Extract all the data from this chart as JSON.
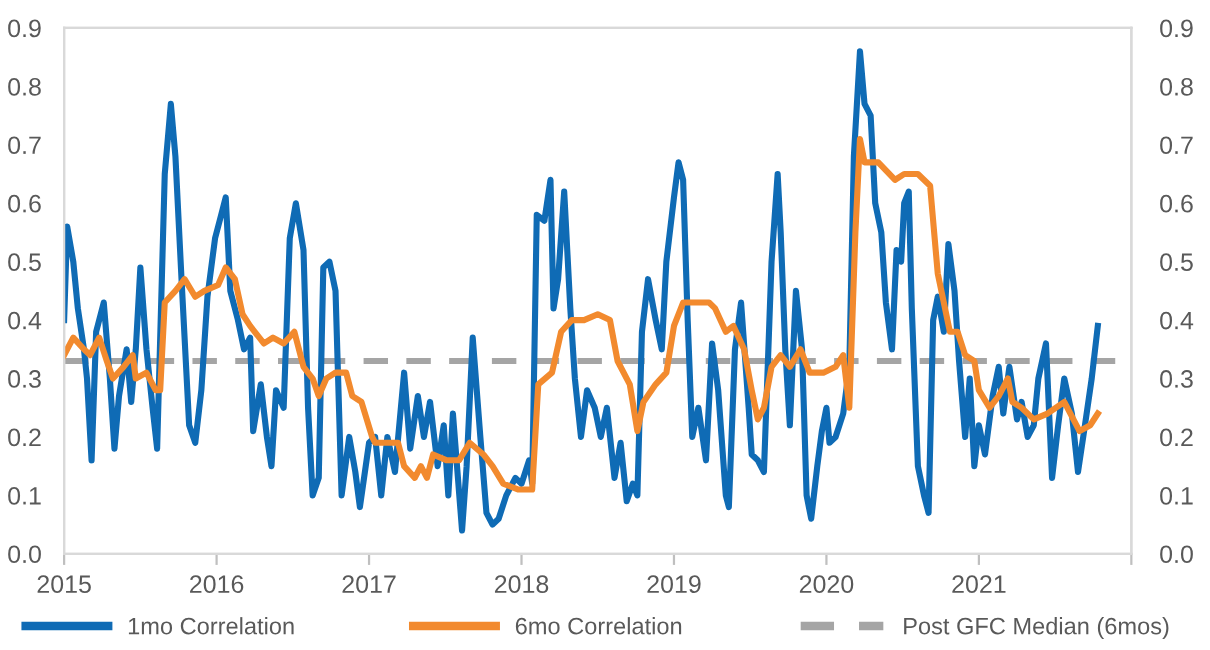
{
  "chart_data": {
    "type": "line",
    "xlim": [
      2015,
      2022
    ],
    "xticks": [
      2015,
      2016,
      2017,
      2018,
      2019,
      2020,
      2021,
      {
        "value": 2022,
        "label": null
      }
    ],
    "ylim": [
      0,
      0.9
    ],
    "yticks": [
      {
        "value": 0,
        "label": "0.0"
      },
      0.1,
      0.2,
      0.3,
      0.4,
      0.5,
      0.6,
      0.7,
      0.8,
      0.9
    ],
    "y2lim": [
      0,
      0.9
    ],
    "y2ticks": [
      {
        "value": 0,
        "label": "0.0"
      },
      0.1,
      0.2,
      0.3,
      0.4,
      0.5,
      0.6,
      0.7,
      0.8,
      0.9
    ],
    "grid": false,
    "legend": "bottom",
    "marker": "none",
    "line_style": "solid",
    "series": [
      {
        "name": "1mo Correlation",
        "color": "#0f6bb5",
        "x": [
          2015.0,
          2015.02,
          2015.06,
          2015.09,
          2015.13,
          2015.15,
          2015.18,
          2015.21,
          2015.26,
          2015.3,
          2015.33,
          2015.36,
          2015.41,
          2015.44,
          2015.47,
          2015.5,
          2015.54,
          2015.58,
          2015.61,
          2015.66,
          2015.7,
          2015.73,
          2015.77,
          2015.82,
          2015.86,
          2015.9,
          2015.94,
          2015.99,
          2016.03,
          2016.06,
          2016.09,
          2016.14,
          2016.18,
          2016.22,
          2016.24,
          2016.29,
          2016.33,
          2016.36,
          2016.39,
          2016.44,
          2016.48,
          2016.52,
          2016.57,
          2016.6,
          2016.63,
          2016.67,
          2016.7,
          2016.74,
          2016.78,
          2016.82,
          2016.87,
          2016.91,
          2016.94,
          2017.0,
          2017.04,
          2017.08,
          2017.12,
          2017.17,
          2017.23,
          2017.27,
          2017.32,
          2017.36,
          2017.4,
          2017.45,
          2017.49,
          2017.52,
          2017.55,
          2017.61,
          2017.64,
          2017.68,
          2017.73,
          2017.77,
          2017.81,
          2017.85,
          2017.9,
          2017.96,
          2018.0,
          2018.05,
          2018.07,
          2018.1,
          2018.15,
          2018.19,
          2018.21,
          2018.24,
          2018.28,
          2018.32,
          2018.35,
          2018.39,
          2018.43,
          2018.48,
          2018.52,
          2018.56,
          2018.61,
          2018.65,
          2018.69,
          2018.73,
          2018.76,
          2018.79,
          2018.83,
          2018.88,
          2018.92,
          2018.95,
          2019.0,
          2019.03,
          2019.06,
          2019.09,
          2019.12,
          2019.16,
          2019.21,
          2019.25,
          2019.29,
          2019.34,
          2019.36,
          2019.4,
          2019.44,
          2019.49,
          2019.51,
          2019.55,
          2019.59,
          2019.64,
          2019.68,
          2019.7,
          2019.73,
          2019.76,
          2019.8,
          2019.84,
          2019.87,
          2019.9,
          2019.94,
          2019.97,
          2020.0,
          2020.02,
          2020.06,
          2020.11,
          2020.15,
          2020.18,
          2020.22,
          2020.25,
          2020.29,
          2020.32,
          2020.36,
          2020.39,
          2020.43,
          2020.46,
          2020.49,
          2020.51,
          2020.54,
          2020.56,
          2020.6,
          2020.64,
          2020.67,
          2020.7,
          2020.73,
          2020.77,
          2020.8,
          2020.84,
          2020.87,
          2020.91,
          2020.94,
          2020.97,
          2021.0,
          2021.04,
          2021.09,
          2021.13,
          2021.16,
          2021.2,
          2021.25,
          2021.28,
          2021.32,
          2021.36,
          2021.39,
          2021.44,
          2021.48,
          2021.52,
          2021.56,
          2021.61,
          2021.65,
          2021.69,
          2021.74,
          2021.78
        ],
        "values": [
          0.4,
          0.56,
          0.5,
          0.42,
          0.35,
          0.3,
          0.16,
          0.38,
          0.43,
          0.3,
          0.18,
          0.27,
          0.35,
          0.26,
          0.35,
          0.49,
          0.35,
          0.25,
          0.18,
          0.65,
          0.77,
          0.68,
          0.47,
          0.22,
          0.19,
          0.28,
          0.44,
          0.54,
          0.58,
          0.61,
          0.45,
          0.4,
          0.35,
          0.37,
          0.21,
          0.29,
          0.2,
          0.15,
          0.28,
          0.25,
          0.54,
          0.6,
          0.52,
          0.25,
          0.1,
          0.13,
          0.49,
          0.5,
          0.45,
          0.1,
          0.2,
          0.14,
          0.08,
          0.19,
          0.2,
          0.1,
          0.2,
          0.14,
          0.31,
          0.18,
          0.27,
          0.2,
          0.26,
          0.15,
          0.22,
          0.1,
          0.24,
          0.04,
          0.15,
          0.37,
          0.2,
          0.07,
          0.05,
          0.06,
          0.1,
          0.13,
          0.12,
          0.16,
          0.12,
          0.58,
          0.57,
          0.64,
          0.42,
          0.47,
          0.62,
          0.42,
          0.3,
          0.2,
          0.28,
          0.25,
          0.2,
          0.25,
          0.13,
          0.19,
          0.09,
          0.12,
          0.1,
          0.38,
          0.47,
          0.4,
          0.35,
          0.5,
          0.61,
          0.67,
          0.64,
          0.4,
          0.2,
          0.25,
          0.16,
          0.36,
          0.28,
          0.1,
          0.08,
          0.35,
          0.43,
          0.25,
          0.17,
          0.16,
          0.14,
          0.5,
          0.65,
          0.55,
          0.35,
          0.22,
          0.45,
          0.35,
          0.1,
          0.06,
          0.15,
          0.21,
          0.25,
          0.19,
          0.2,
          0.24,
          0.32,
          0.68,
          0.86,
          0.77,
          0.75,
          0.6,
          0.55,
          0.43,
          0.35,
          0.52,
          0.5,
          0.6,
          0.62,
          0.42,
          0.15,
          0.1,
          0.07,
          0.4,
          0.44,
          0.38,
          0.53,
          0.45,
          0.33,
          0.2,
          0.3,
          0.15,
          0.22,
          0.17,
          0.27,
          0.32,
          0.24,
          0.32,
          0.23,
          0.26,
          0.2,
          0.22,
          0.3,
          0.36,
          0.13,
          0.22,
          0.3,
          0.24,
          0.14,
          0.21,
          0.3,
          0.39
        ]
      },
      {
        "name": "6mo Correlation",
        "color": "#f28a2e",
        "x": [
          2015.0,
          2015.06,
          2015.13,
          2015.17,
          2015.23,
          2015.28,
          2015.32,
          2015.39,
          2015.45,
          2015.47,
          2015.54,
          2015.6,
          2015.63,
          2015.66,
          2015.73,
          2015.79,
          2015.86,
          2015.92,
          2016.01,
          2016.06,
          2016.12,
          2016.17,
          2016.22,
          2016.31,
          2016.37,
          2016.44,
          2016.51,
          2016.57,
          2016.63,
          2016.67,
          2016.72,
          2016.78,
          2016.85,
          2016.89,
          2016.95,
          2017.02,
          2017.04,
          2017.19,
          2017.23,
          2017.3,
          2017.34,
          2017.38,
          2017.42,
          2017.51,
          2017.59,
          2017.66,
          2017.75,
          2017.81,
          2017.88,
          2017.98,
          2018.07,
          2018.11,
          2018.2,
          2018.26,
          2018.33,
          2018.41,
          2018.5,
          2018.58,
          2018.63,
          2018.71,
          2018.76,
          2018.8,
          2018.88,
          2018.95,
          2019.0,
          2019.06,
          2019.15,
          2019.23,
          2019.27,
          2019.34,
          2019.39,
          2019.46,
          2019.51,
          2019.55,
          2019.59,
          2019.64,
          2019.7,
          2019.76,
          2019.83,
          2019.89,
          2019.98,
          2020.06,
          2020.11,
          2020.15,
          2020.19,
          2020.22,
          2020.25,
          2020.34,
          2020.45,
          2020.51,
          2020.6,
          2020.68,
          2020.73,
          2020.77,
          2020.81,
          2020.86,
          2020.91,
          2020.97,
          2021.0,
          2021.07,
          2021.13,
          2021.19,
          2021.22,
          2021.28,
          2021.36,
          2021.45,
          2021.56,
          2021.62,
          2021.66,
          2021.73,
          2021.78
        ],
        "values": [
          0.34,
          0.37,
          0.35,
          0.34,
          0.37,
          0.33,
          0.3,
          0.32,
          0.34,
          0.3,
          0.31,
          0.28,
          0.28,
          0.43,
          0.45,
          0.47,
          0.44,
          0.45,
          0.46,
          0.49,
          0.47,
          0.41,
          0.39,
          0.36,
          0.37,
          0.36,
          0.38,
          0.32,
          0.3,
          0.27,
          0.3,
          0.31,
          0.31,
          0.27,
          0.26,
          0.2,
          0.19,
          0.19,
          0.15,
          0.13,
          0.15,
          0.13,
          0.17,
          0.16,
          0.16,
          0.19,
          0.17,
          0.15,
          0.12,
          0.11,
          0.11,
          0.29,
          0.31,
          0.38,
          0.4,
          0.4,
          0.41,
          0.4,
          0.33,
          0.29,
          0.21,
          0.26,
          0.29,
          0.31,
          0.39,
          0.43,
          0.43,
          0.43,
          0.42,
          0.38,
          0.39,
          0.35,
          0.28,
          0.23,
          0.25,
          0.32,
          0.34,
          0.32,
          0.35,
          0.31,
          0.31,
          0.32,
          0.34,
          0.25,
          0.55,
          0.71,
          0.67,
          0.67,
          0.64,
          0.65,
          0.65,
          0.63,
          0.48,
          0.43,
          0.38,
          0.38,
          0.34,
          0.33,
          0.28,
          0.25,
          0.27,
          0.3,
          0.26,
          0.25,
          0.23,
          0.24,
          0.26,
          0.23,
          0.21,
          0.22,
          0.24
        ]
      }
    ],
    "ref_lines": [
      {
        "axis": "y",
        "value": 0.33,
        "label": "Post GFC Median (6mos)",
        "color": "#a5a5a5",
        "line_style": "dashed"
      }
    ]
  }
}
